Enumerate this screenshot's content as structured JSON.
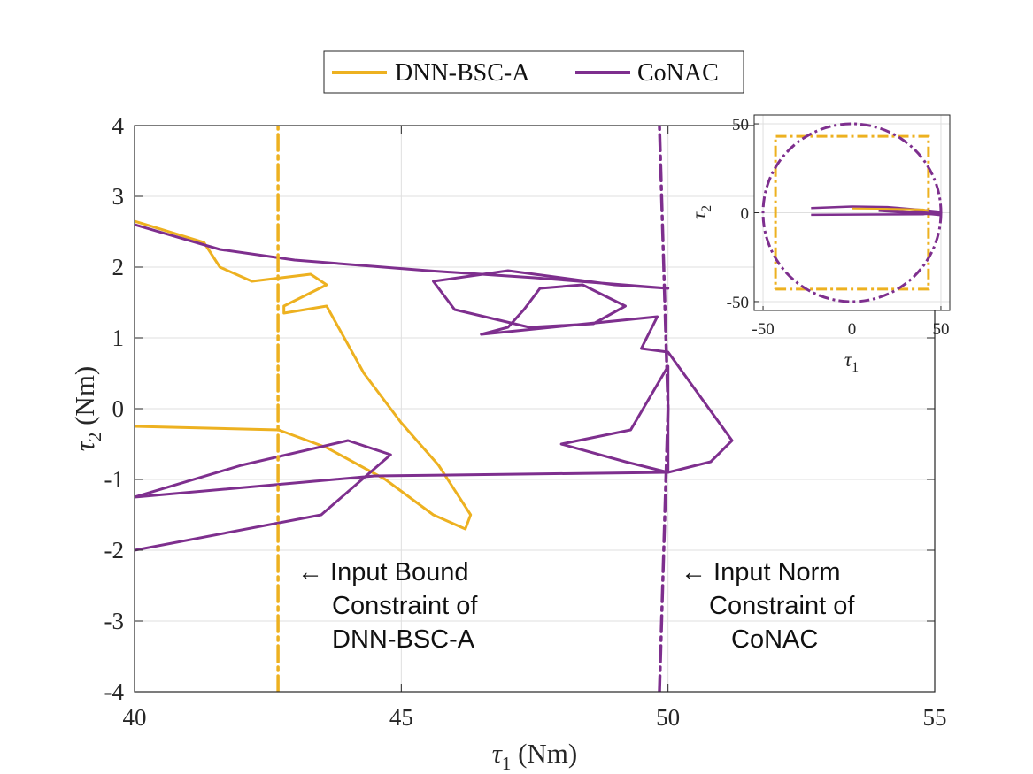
{
  "colors": {
    "dnn": "#EDB120",
    "conac": "#7E2F8E",
    "axis": "#262626",
    "grid": "#DFDFDF"
  },
  "legend": {
    "items": [
      "DNN-BSC-A",
      "CoNAC"
    ],
    "placement": "top-center"
  },
  "main_axes": {
    "xlabel": {
      "sym": "τ",
      "sub": "1",
      "unit": " (Nm)"
    },
    "ylabel": {
      "sym": "τ",
      "sub": "2",
      "unit": " (Nm)"
    },
    "xlim": [
      40,
      55
    ],
    "ylim": [
      -4,
      4
    ],
    "xticks": [
      "40",
      "45",
      "50",
      "55"
    ],
    "yticks": [
      "4",
      "3",
      "2",
      "1",
      "0",
      "-1",
      "-2",
      "-3",
      "-4"
    ],
    "grid": true
  },
  "annotations": {
    "bound": [
      "← Input Bound",
      "Constraint of",
      "DNN-BSC-A"
    ],
    "norm": [
      "← Input Norm",
      "Constraint of",
      "CoNAC"
    ]
  },
  "inset_axes": {
    "xlabel": {
      "sym": "τ",
      "sub": "1"
    },
    "ylabel": {
      "sym": "τ",
      "sub": "2"
    },
    "xlim": [
      -55,
      55
    ],
    "ylim": [
      -55,
      55
    ],
    "xticks": [
      "-50",
      "0",
      "50"
    ],
    "yticks": [
      "50",
      "0",
      "-50"
    ],
    "grid": true
  },
  "chart_data": {
    "type": "line",
    "xlabel": "τ1 (Nm)",
    "ylabel": "τ2 (Nm)",
    "xlim": [
      40,
      55
    ],
    "ylim": [
      -4,
      4
    ],
    "series": [
      {
        "name": "DNN-BSC-A",
        "values": [
          [
            40.0,
            2.65
          ],
          [
            41.3,
            2.35
          ],
          [
            41.6,
            2.0
          ],
          [
            42.2,
            1.8
          ],
          [
            43.3,
            1.9
          ],
          [
            43.6,
            1.75
          ],
          [
            42.8,
            1.45
          ],
          [
            42.8,
            1.35
          ],
          [
            43.6,
            1.45
          ],
          [
            44.3,
            0.5
          ],
          [
            45.0,
            -0.2
          ],
          [
            45.7,
            -0.8
          ],
          [
            46.3,
            -1.5
          ],
          [
            46.2,
            -1.7
          ],
          [
            45.6,
            -1.5
          ],
          [
            44.7,
            -1.0
          ],
          [
            43.6,
            -0.55
          ],
          [
            42.7,
            -0.3
          ],
          [
            40.0,
            -0.25
          ]
        ]
      },
      {
        "name": "CoNAC",
        "values": [
          [
            40.0,
            2.6
          ],
          [
            41.6,
            2.25
          ],
          [
            43.0,
            2.1
          ],
          [
            45.5,
            1.95
          ],
          [
            47.5,
            1.85
          ],
          [
            50.0,
            1.7
          ],
          [
            49.0,
            1.75
          ],
          [
            47.0,
            1.95
          ],
          [
            45.6,
            1.8
          ],
          [
            46.0,
            1.4
          ],
          [
            47.4,
            1.15
          ],
          [
            48.6,
            1.2
          ],
          [
            49.2,
            1.45
          ],
          [
            48.4,
            1.75
          ],
          [
            47.6,
            1.7
          ],
          [
            47.3,
            1.4
          ],
          [
            47.0,
            1.15
          ],
          [
            46.5,
            1.05
          ],
          [
            49.8,
            1.3
          ],
          [
            49.5,
            0.85
          ],
          [
            50.0,
            0.8
          ],
          [
            51.2,
            -0.45
          ],
          [
            50.8,
            -0.75
          ],
          [
            50.0,
            -0.9
          ],
          [
            49.2,
            -0.75
          ],
          [
            48.0,
            -0.5
          ],
          [
            49.3,
            -0.3
          ],
          [
            50.0,
            0.6
          ],
          [
            50.0,
            -0.9
          ],
          [
            44.5,
            -0.95
          ],
          [
            40.0,
            -1.25
          ],
          [
            42.0,
            -0.8
          ],
          [
            44.0,
            -0.45
          ],
          [
            44.8,
            -0.65
          ],
          [
            43.5,
            -1.5
          ],
          [
            40.0,
            -2.0
          ]
        ]
      },
      {
        "name": "Input Bound Constraint of DNN-BSC-A",
        "values": [
          [
            42.69,
            -4
          ],
          [
            42.69,
            4
          ]
        ]
      },
      {
        "name": "Input Norm Constraint of CoNAC",
        "values": [
          [
            49.84,
            -4
          ],
          [
            50.0,
            0
          ],
          [
            49.84,
            4
          ]
        ]
      }
    ],
    "inset": {
      "xlim": [
        -55,
        55
      ],
      "ylim": [
        -55,
        55
      ],
      "box_limit": 43,
      "circle_radius": 50
    }
  }
}
